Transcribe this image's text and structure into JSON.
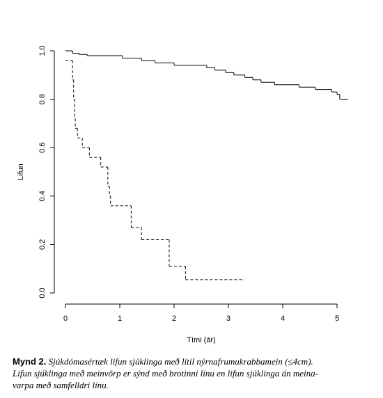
{
  "chart_data": {
    "type": "step",
    "xlabel": "Tími (ár)",
    "ylabel": "Lifun",
    "xlim": [
      -0.2,
      5.2
    ],
    "ylim": [
      0,
      1
    ],
    "xticks": [
      0,
      1,
      2,
      3,
      4,
      5
    ],
    "yticks": [
      {
        "value": 0,
        "label": "0.0"
      },
      0.2,
      0.4,
      0.6,
      0.8,
      {
        "value": 1,
        "label": "1.0"
      }
    ],
    "series": [
      {
        "color": "#000000",
        "dashed": false,
        "x": [
          0,
          0.13,
          0.25,
          0.4,
          1.05,
          1.4,
          1.65,
          2.0,
          2.6,
          2.75,
          2.95,
          3.1,
          3.3,
          3.45,
          3.6,
          3.85,
          4.3,
          4.6,
          4.9,
          5.0,
          5.05,
          5.2
        ],
        "values": [
          1.0,
          0.99,
          0.985,
          0.98,
          0.97,
          0.96,
          0.95,
          0.94,
          0.93,
          0.92,
          0.91,
          0.9,
          0.89,
          0.88,
          0.87,
          0.86,
          0.85,
          0.84,
          0.83,
          0.82,
          0.8,
          0.8
        ]
      },
      {
        "color": "#000000",
        "dashed": true,
        "x": [
          0,
          0.13,
          0.15,
          0.17,
          0.18,
          0.22,
          0.31,
          0.44,
          0.65,
          0.78,
          0.81,
          0.83,
          1.21,
          1.4,
          1.91,
          2.21,
          3.28
        ],
        "values": [
          0.96,
          0.88,
          0.8,
          0.72,
          0.68,
          0.64,
          0.6,
          0.56,
          0.52,
          0.44,
          0.4,
          0.36,
          0.27,
          0.22,
          0.11,
          0.055,
          0.055
        ]
      }
    ]
  },
  "caption": {
    "label": "Mynd 2.",
    "lines": [
      "Sjúkdómasértæk lifun sjúklinga með lítil nýrnafrumukrabbamein (≤4cm).",
      "Lifun sjúklinga með meinvörp er sýnd með brotinni línu en lifun sjúklinga án meina-",
      "varpa með samfelldri línu."
    ]
  }
}
